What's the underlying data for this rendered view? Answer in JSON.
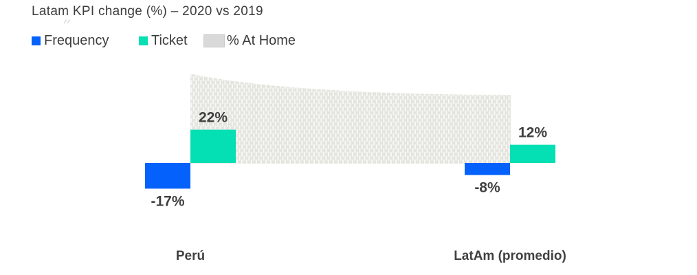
{
  "colors": {
    "frequency_blue": "#0561fb",
    "ticket_teal": "#04dfb4",
    "area_pattern_bg": "#e4e4df",
    "area_pattern_dash": "#f6f6f3",
    "legend_area_swatch": "#d9d9d9",
    "title_text": "#3d3d3d",
    "label_text": "#404040"
  },
  "chart_data": {
    "type": "bar",
    "subtype": "grouped column chart with background area series",
    "title": "Latam KPI change (%) – 2020 vs 2019",
    "categories": [
      "Perú",
      "LatAm (promedio)"
    ],
    "series": [
      {
        "name": "Frequency",
        "type": "bar",
        "color": "#0561fb",
        "values": [
          -17,
          -8
        ],
        "labels": [
          "-17%",
          "-8%"
        ]
      },
      {
        "name": "Ticket",
        "type": "bar",
        "color": "#04dfb4",
        "values": [
          22,
          12
        ],
        "labels": [
          "22%",
          "12%"
        ]
      },
      {
        "name": "% At Home",
        "type": "area",
        "fill": "light-gray vertical-dash pattern",
        "values": [
          59,
          45
        ],
        "values_estimated": true,
        "labels": []
      }
    ],
    "ylim": [
      -30,
      65
    ],
    "grid": false,
    "axes_visible": false,
    "data_labels": true,
    "legend_position": "top-left"
  }
}
